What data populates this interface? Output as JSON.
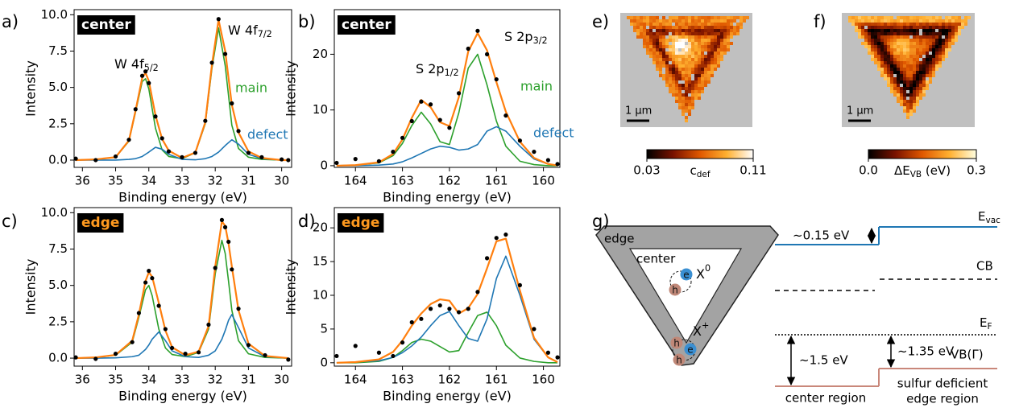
{
  "chart_data": [
    {
      "type": "line",
      "panel": "a)",
      "badge": "center",
      "badge_color": "#ffffff",
      "xlabel": "Binding energy (eV)",
      "ylabel": "Intensity",
      "xlim": [
        36.25,
        29.7
      ],
      "xticks": [
        36,
        35,
        34,
        33,
        32,
        31,
        30
      ],
      "ylim": [
        -0.5,
        10.35
      ],
      "yticks": [
        {
          "value": 0,
          "label": "0.0"
        },
        2.5,
        {
          "value": 5,
          "label": "5.0"
        },
        7.5,
        {
          "value": 10,
          "label": "10.0"
        }
      ],
      "peak_labels": [
        {
          "text": "W 4f",
          "sub": "5/2"
        },
        {
          "text": "W 4f",
          "sub": "7/2"
        }
      ],
      "x": [
        36.2,
        35.6,
        35.0,
        34.6,
        34.4,
        34.2,
        34.1,
        34.0,
        33.8,
        33.6,
        33.4,
        33.0,
        32.6,
        32.3,
        32.1,
        31.9,
        31.7,
        31.5,
        31.3,
        31.0,
        30.6,
        30.0,
        29.8
      ],
      "series": [
        {
          "name": "main",
          "color": "#2ca02c",
          "style": "line",
          "values": [
            0,
            0.05,
            0.2,
            1.3,
            3.3,
            5.4,
            5.6,
            4.9,
            2.2,
            0.7,
            0.25,
            0.1,
            0.5,
            2.5,
            6.3,
            9.1,
            6.5,
            2.4,
            0.8,
            0.2,
            0.05,
            0,
            0
          ]
        },
        {
          "name": "defect",
          "color": "#1f77b4",
          "style": "line",
          "values": [
            0,
            0,
            0,
            0.05,
            0.1,
            0.25,
            0.4,
            0.55,
            0.88,
            0.75,
            0.4,
            0.05,
            0.02,
            0.1,
            0.25,
            0.55,
            1.0,
            1.4,
            1.1,
            0.4,
            0.1,
            0,
            0
          ]
        },
        {
          "color": "#ff7f0e",
          "style": "line",
          "values": [
            0,
            0.05,
            0.2,
            1.35,
            3.4,
            5.65,
            6.0,
            5.45,
            3.08,
            1.45,
            0.65,
            0.15,
            0.52,
            2.6,
            6.55,
            9.65,
            7.5,
            3.8,
            1.9,
            0.6,
            0.15,
            0,
            0
          ]
        },
        {
          "color": "#000000",
          "style": "scatter",
          "values": [
            0.1,
            0,
            0.25,
            1.4,
            3.5,
            5.8,
            6.1,
            5.3,
            3.0,
            1.5,
            0.6,
            0.2,
            0.5,
            2.7,
            6.7,
            9.7,
            7.3,
            3.9,
            2.0,
            0.5,
            0.2,
            0.05,
            0
          ]
        }
      ]
    },
    {
      "type": "line",
      "panel": "b)",
      "badge": "center",
      "badge_color": "#ffffff",
      "xlabel": "Binding energy (eV)",
      "ylabel": "Intensity",
      "xlim": [
        164.45,
        159.65
      ],
      "xticks": [
        164,
        163,
        162,
        161,
        160
      ],
      "ylim": [
        -0.3,
        28
      ],
      "yticks": [
        0,
        10,
        20
      ],
      "peak_labels": [
        {
          "text": "S 2p",
          "sub": "1/2"
        },
        {
          "text": "S 2p",
          "sub": "3/2"
        }
      ],
      "x": [
        164.4,
        164.0,
        163.5,
        163.2,
        163.0,
        162.8,
        162.6,
        162.4,
        162.2,
        162.0,
        161.8,
        161.6,
        161.4,
        161.2,
        161.0,
        160.8,
        160.5,
        160.2,
        159.9,
        159.7
      ],
      "series": [
        {
          "name": "main",
          "color": "#2ca02c",
          "style": "line",
          "values": [
            0,
            0.1,
            0.5,
            1.8,
            4.0,
            7.2,
            9.6,
            7.5,
            4.3,
            3.8,
            9.5,
            17.5,
            20,
            14.5,
            8,
            3.5,
            0.8,
            0.2,
            0,
            0
          ]
        },
        {
          "name": "defect",
          "color": "#1f77b4",
          "style": "line",
          "values": [
            0,
            0,
            0.1,
            0.3,
            0.7,
            1.4,
            2.2,
            3.0,
            3.5,
            3.3,
            2.8,
            3.0,
            3.8,
            6.2,
            7.0,
            6.2,
            3.5,
            1.2,
            0.3,
            0.05
          ]
        },
        {
          "color": "#ff7f0e",
          "style": "line",
          "values": [
            0,
            0.1,
            0.6,
            2.1,
            4.7,
            8.6,
            11.8,
            10.5,
            7.8,
            7.1,
            12.3,
            20.5,
            23.8,
            20.7,
            15,
            9.7,
            4.3,
            1.4,
            0.3,
            0.05
          ]
        },
        {
          "color": "#000000",
          "style": "scatter",
          "values": [
            0.5,
            1.2,
            0.8,
            2.5,
            5.0,
            8.0,
            11.5,
            11.0,
            8.2,
            6.8,
            13,
            21,
            24.2,
            20,
            15.5,
            9,
            4.5,
            2.5,
            1.0,
            0.3
          ]
        }
      ]
    },
    {
      "type": "line",
      "panel": "c)",
      "badge": "edge",
      "badge_color": "#ff9a1f",
      "xlabel": "Binding energy (eV)",
      "ylabel": "Intensity",
      "xlim": [
        36.25,
        29.7
      ],
      "xticks": [
        36,
        35,
        34,
        33,
        32,
        31,
        30
      ],
      "ylim": [
        -0.55,
        10.35
      ],
      "yticks": [
        {
          "value": 0,
          "label": "0.0"
        },
        2.5,
        {
          "value": 5,
          "label": "5.0"
        },
        7.5,
        {
          "value": 10,
          "label": "10.0"
        }
      ],
      "x": [
        36.2,
        35.6,
        35.0,
        34.5,
        34.3,
        34.1,
        34.0,
        33.9,
        33.7,
        33.5,
        33.3,
        32.9,
        32.5,
        32.2,
        32.0,
        31.8,
        31.7,
        31.6,
        31.5,
        31.3,
        31.0,
        30.5,
        29.8
      ],
      "series": [
        {
          "color": "#2ca02c",
          "style": "line",
          "values": [
            0,
            0.05,
            0.2,
            1.1,
            2.8,
            4.7,
            5.0,
            4.3,
            2.0,
            0.7,
            0.25,
            0.1,
            0.4,
            2.0,
            5.8,
            8.1,
            7.2,
            5.3,
            3.3,
            1.2,
            0.3,
            0.05,
            0
          ]
        },
        {
          "color": "#1f77b4",
          "style": "line",
          "values": [
            0,
            0,
            0.02,
            0.1,
            0.2,
            0.6,
            0.9,
            1.3,
            1.8,
            1.2,
            0.5,
            0.1,
            0.05,
            0.2,
            0.5,
            1.3,
            1.9,
            2.6,
            3.0,
            2.1,
            0.7,
            0.1,
            0
          ]
        },
        {
          "color": "#ff7f0e",
          "style": "line",
          "values": [
            0,
            0.05,
            0.22,
            1.2,
            3.0,
            5.3,
            5.9,
            5.6,
            3.8,
            1.9,
            0.75,
            0.2,
            0.45,
            2.2,
            6.3,
            9.4,
            9.1,
            7.9,
            6.3,
            3.3,
            1.0,
            0.15,
            0
          ]
        },
        {
          "color": "#000000",
          "style": "scatter",
          "values": [
            0.05,
            -0.05,
            0.3,
            1.1,
            3.1,
            5.2,
            6.0,
            5.5,
            3.6,
            2.0,
            0.7,
            0.3,
            0.4,
            2.3,
            6.2,
            9.5,
            9.0,
            8.0,
            6.1,
            3.4,
            0.9,
            0.2,
            -0.1
          ]
        }
      ]
    },
    {
      "type": "line",
      "panel": "d)",
      "badge": "edge",
      "badge_color": "#ff9a1f",
      "xlabel": "Binding energy (eV)",
      "ylabel": "Intensity",
      "xlim": [
        164.45,
        159.65
      ],
      "xticks": [
        164,
        163,
        162,
        161,
        160
      ],
      "ylim": [
        -0.5,
        23
      ],
      "yticks": [
        0,
        5,
        10,
        15,
        20
      ],
      "x": [
        164.4,
        164.0,
        163.5,
        163.2,
        163.0,
        162.8,
        162.6,
        162.4,
        162.2,
        162.0,
        161.8,
        161.6,
        161.4,
        161.2,
        161.0,
        160.8,
        160.5,
        160.2,
        159.9,
        159.7
      ],
      "series": [
        {
          "color": "#2ca02c",
          "style": "line",
          "values": [
            0,
            0,
            0.2,
            0.8,
            1.8,
            3.0,
            3.5,
            3.2,
            2.4,
            1.6,
            1.8,
            4.5,
            7.0,
            7.5,
            5.5,
            2.6,
            0.7,
            0.2,
            0,
            0
          ]
        },
        {
          "color": "#1f77b4",
          "style": "line",
          "values": [
            0,
            0.1,
            0.3,
            0.8,
            1.5,
            2.5,
            3.8,
            5.5,
            7.0,
            7.6,
            5.5,
            3.6,
            3.2,
            6.5,
            12.5,
            15.8,
            10.0,
            3.5,
            0.8,
            0.1
          ]
        },
        {
          "color": "#ff7f0e",
          "style": "line",
          "values": [
            0,
            0.1,
            0.5,
            1.6,
            3.3,
            5.5,
            7.3,
            8.7,
            9.4,
            9.2,
            7.3,
            8.1,
            10.2,
            14.0,
            18.0,
            18.4,
            10.7,
            3.7,
            0.8,
            0.1
          ]
        },
        {
          "color": "#000000",
          "style": "scatter",
          "values": [
            1.0,
            2.5,
            1.5,
            1.0,
            3.0,
            6.0,
            6.5,
            8.0,
            8.5,
            8.0,
            7.5,
            8.0,
            10.5,
            15.5,
            18.5,
            19.0,
            11.5,
            5.0,
            1.5,
            0.8
          ]
        }
      ]
    }
  ],
  "maps": [
    {
      "panel": "e)",
      "scale_bar": "1 μm",
      "colormap": [
        "#000000",
        "#7a1200",
        "#e05800",
        "#ffb030",
        "#ffffff"
      ],
      "clim": [
        0.03,
        0.11
      ],
      "cticks": [
        0.03,
        0.11
      ],
      "clabel": {
        "text": "c",
        "sub": "def"
      }
    },
    {
      "panel": "f)",
      "scale_bar": "1 μm",
      "colormap": [
        "#000000",
        "#7a1200",
        "#e05800",
        "#ffb030",
        "#ffffe0"
      ],
      "clim": [
        0,
        0.3
      ],
      "cticks": [
        {
          "value": 0,
          "label": "0.0"
        },
        0.3
      ],
      "clabel": {
        "text": "ΔE",
        "sub": "VB",
        "suffix": " (eV)"
      }
    }
  ],
  "diagram": {
    "panel": "g)",
    "edge": "edge",
    "center": "center",
    "exciton_neutral": {
      "text": "X",
      "sup": "0"
    },
    "exciton_charged": {
      "text": "X",
      "sup": "+"
    },
    "carriers": [
      "e",
      "h",
      "h",
      "e",
      "h"
    ],
    "levels": {
      "vac": {
        "text": "E",
        "sub": "vac"
      },
      "cb": "CB",
      "fermi": {
        "text": "E",
        "sub": "F"
      },
      "vb": "VB(Γ)"
    },
    "offsets": [
      "~0.15 eV",
      "~1.5 eV",
      "~1.35 eV"
    ],
    "regions": [
      "center region",
      "sulfur deficient",
      "edge region"
    ]
  }
}
